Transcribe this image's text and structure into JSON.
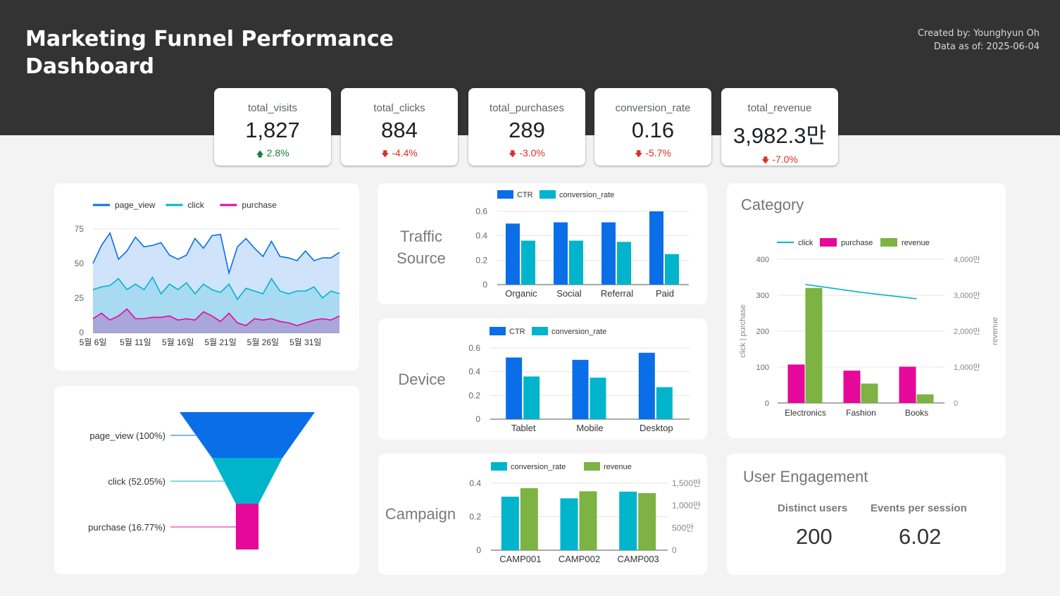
{
  "header": {
    "title": "Marketing Funnel Performance Dashboard",
    "created_by": "Created by: Younghyun Oh",
    "data_as_of": "Data as of: 2025-06-04"
  },
  "kpis": [
    {
      "label": "total_visits",
      "value": "1,827",
      "delta": "2.8%",
      "direction": "up"
    },
    {
      "label": "total_clicks",
      "value": "884",
      "delta": "-4.4%",
      "direction": "down"
    },
    {
      "label": "total_purchases",
      "value": "289",
      "delta": "-3.0%",
      "direction": "down"
    },
    {
      "label": "conversion_rate",
      "value": "0.16",
      "delta": "-5.7%",
      "direction": "down"
    },
    {
      "label": "total_revenue",
      "value": "3,982.3만",
      "delta": "-7.0%",
      "direction": "down"
    }
  ],
  "colors": {
    "blue": "#0a6ee8",
    "teal": "#00b4cc",
    "magenta": "#e6089a",
    "green": "#7cb342",
    "header_bg": "#333333"
  },
  "sections": {
    "traffic": [
      "Traffic",
      "Source"
    ],
    "device": "Device",
    "campaign": "Campaign",
    "category": "Category",
    "engagement": "User Engagement"
  },
  "engagement": {
    "distinct_users_label": "Distinct users",
    "distinct_users": "200",
    "events_label": "Events per session",
    "events_per_session": "6.02"
  },
  "chart_data": [
    {
      "id": "daily_trend",
      "type": "area",
      "series": [
        {
          "name": "page_view",
          "values": [
            50,
            63,
            72,
            53,
            59,
            69,
            62,
            63,
            65,
            56,
            53,
            56,
            68,
            61,
            70,
            71,
            43,
            62,
            68,
            61,
            55,
            66,
            55,
            54,
            52,
            59,
            52,
            54,
            54,
            58
          ]
        },
        {
          "name": "click",
          "values": [
            31,
            33,
            34,
            39,
            31,
            35,
            31,
            40,
            28,
            35,
            31,
            36,
            28,
            35,
            31,
            29,
            35,
            24,
            32,
            30,
            28,
            39,
            30,
            28,
            30,
            30,
            33,
            25,
            30,
            28
          ]
        },
        {
          "name": "purchase",
          "values": [
            10,
            14,
            9,
            12,
            17,
            10,
            10,
            11,
            11,
            12,
            9,
            10,
            9,
            15,
            12,
            8,
            14,
            7,
            5,
            10,
            9,
            10,
            8,
            7,
            5,
            7,
            9,
            10,
            9,
            12
          ]
        }
      ],
      "x_ticks": [
        "5월 6일",
        "5월 11일",
        "5월 16일",
        "5월 21일",
        "5월 26일",
        "5월 31일"
      ],
      "y_ticks": [
        "0",
        "25",
        "50",
        "75"
      ],
      "ylim": [
        0,
        80
      ]
    },
    {
      "id": "funnel",
      "type": "bar",
      "categories": [
        "page_view (100%)",
        "click (52.05%)",
        "purchase (16.77%)"
      ],
      "values": [
        100,
        52.05,
        16.77
      ]
    },
    {
      "id": "traffic_source",
      "type": "bar",
      "categories": [
        "Organic",
        "Social",
        "Referral",
        "Paid"
      ],
      "series": [
        {
          "name": "CTR",
          "values": [
            0.5,
            0.51,
            0.51,
            0.6
          ]
        },
        {
          "name": "conversion_rate",
          "values": [
            0.36,
            0.36,
            0.35,
            0.25
          ]
        }
      ],
      "y_ticks": [
        "0",
        "0.2",
        "0.4",
        "0.6"
      ],
      "ylim": [
        0,
        0.6
      ]
    },
    {
      "id": "device",
      "type": "bar",
      "categories": [
        "Tablet",
        "Mobile",
        "Desktop"
      ],
      "series": [
        {
          "name": "CTR",
          "values": [
            0.52,
            0.5,
            0.56
          ]
        },
        {
          "name": "conversion_rate",
          "values": [
            0.36,
            0.35,
            0.27
          ]
        }
      ],
      "y_ticks": [
        "0",
        "0.2",
        "0.4",
        "0.6"
      ],
      "ylim": [
        0,
        0.6
      ]
    },
    {
      "id": "campaign",
      "type": "bar",
      "categories": [
        "CAMP001",
        "CAMP002",
        "CAMP003"
      ],
      "series": [
        {
          "name": "conversion_rate",
          "axis": "left",
          "values": [
            0.32,
            0.31,
            0.35
          ]
        },
        {
          "name": "revenue",
          "axis": "right",
          "values": [
            1390,
            1320,
            1280
          ]
        }
      ],
      "y_ticks": [
        "0",
        "0.2",
        "0.4"
      ],
      "ylim": [
        0,
        0.4
      ],
      "y2_ticks": [
        "0",
        "500만",
        "1,000만",
        "1,500만"
      ],
      "y2lim": [
        0,
        1500
      ]
    },
    {
      "id": "category",
      "type": "bar",
      "categories": [
        "Electronics",
        "Fashion",
        "Books"
      ],
      "series": [
        {
          "name": "click",
          "kind": "line",
          "axis": "left",
          "values": [
            330,
            308,
            290
          ]
        },
        {
          "name": "purchase",
          "kind": "bar",
          "axis": "left",
          "values": [
            107,
            90,
            101
          ]
        },
        {
          "name": "revenue",
          "kind": "bar",
          "axis": "right",
          "values": [
            3200,
            540,
            240
          ]
        }
      ],
      "ylabel": "click | purchase",
      "y2label": "revenue",
      "y_ticks": [
        "0",
        "100",
        "200",
        "300",
        "400"
      ],
      "ylim": [
        0,
        400
      ],
      "y2_ticks": [
        "0",
        "1,000만",
        "2,000만",
        "3,000만",
        "4,000만"
      ],
      "y2lim": [
        0,
        4000
      ]
    }
  ]
}
